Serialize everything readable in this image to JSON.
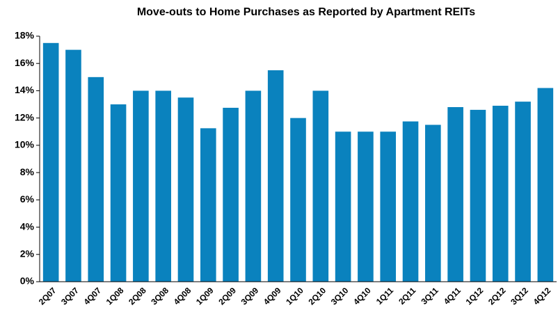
{
  "chart_data": {
    "type": "bar",
    "title": "Move-outs to Home Purchases as Reported by Apartment REITs",
    "categories": [
      "2Q07",
      "3Q07",
      "4Q07",
      "1Q08",
      "2Q08",
      "3Q08",
      "4Q08",
      "1Q09",
      "2Q09",
      "3Q09",
      "4Q09",
      "1Q10",
      "2Q10",
      "3Q10",
      "4Q10",
      "1Q11",
      "2Q11",
      "3Q11",
      "4Q11",
      "1Q12",
      "2Q12",
      "3Q12",
      "4Q12"
    ],
    "values": [
      17.5,
      17.0,
      15.0,
      13.0,
      14.0,
      14.0,
      13.5,
      11.25,
      12.75,
      14.0,
      15.5,
      12.0,
      14.0,
      11.0,
      11.0,
      11.0,
      11.75,
      11.5,
      12.8,
      12.6,
      12.9,
      13.2,
      14.2
    ],
    "color": "#0a82be",
    "ylim": [
      0,
      18
    ],
    "yticks": [
      {
        "value": 0,
        "label": "0%"
      },
      {
        "value": 2,
        "label": "2%"
      },
      {
        "value": 4,
        "label": "4%"
      },
      {
        "value": 6,
        "label": "6%"
      },
      {
        "value": 8,
        "label": "8%"
      },
      {
        "value": 10,
        "label": "10%"
      },
      {
        "value": 12,
        "label": "12%"
      },
      {
        "value": 14,
        "label": "14%"
      },
      {
        "value": 16,
        "label": "16%"
      },
      {
        "value": 18,
        "label": "18%"
      }
    ],
    "grid": false
  }
}
